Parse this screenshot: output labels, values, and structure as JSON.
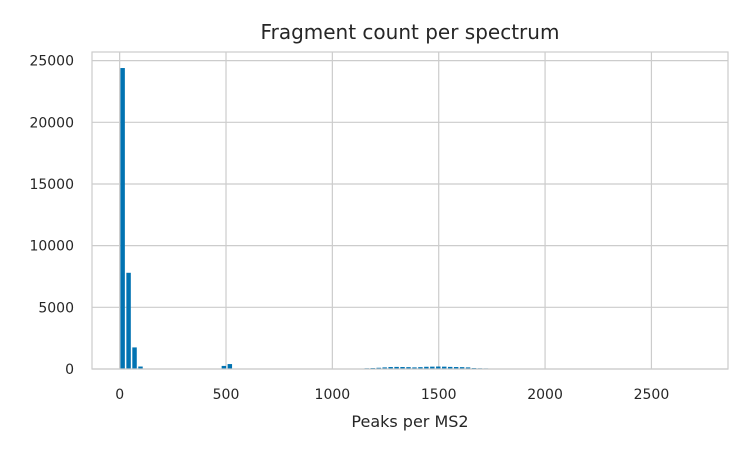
{
  "chart_data": {
    "type": "bar",
    "title": "Fragment count per spectrum",
    "xlabel": "Peaks per MS2",
    "ylabel": "",
    "xlim": [
      -130,
      2860
    ],
    "ylim": [
      0,
      25700
    ],
    "x_ticks": [
      0,
      500,
      1000,
      1500,
      2000,
      2500
    ],
    "y_ticks": [
      0,
      5000,
      10000,
      15000,
      20000,
      25000
    ],
    "grid": true,
    "bar_color": "#0173b2",
    "bin_width": 28,
    "bins": [
      {
        "x": 0,
        "count": 24400
      },
      {
        "x": 28,
        "count": 7800
      },
      {
        "x": 56,
        "count": 1750
      },
      {
        "x": 84,
        "count": 200
      },
      {
        "x": 112,
        "count": 40
      },
      {
        "x": 140,
        "count": 10
      },
      {
        "x": 168,
        "count": 5
      },
      {
        "x": 476,
        "count": 250
      },
      {
        "x": 504,
        "count": 400
      },
      {
        "x": 532,
        "count": 15
      },
      {
        "x": 1120,
        "count": 30
      },
      {
        "x": 1148,
        "count": 60
      },
      {
        "x": 1176,
        "count": 80
      },
      {
        "x": 1204,
        "count": 100
      },
      {
        "x": 1232,
        "count": 130
      },
      {
        "x": 1260,
        "count": 160
      },
      {
        "x": 1288,
        "count": 170
      },
      {
        "x": 1316,
        "count": 160
      },
      {
        "x": 1344,
        "count": 150
      },
      {
        "x": 1372,
        "count": 130
      },
      {
        "x": 1400,
        "count": 150
      },
      {
        "x": 1428,
        "count": 180
      },
      {
        "x": 1456,
        "count": 190
      },
      {
        "x": 1484,
        "count": 200
      },
      {
        "x": 1512,
        "count": 190
      },
      {
        "x": 1540,
        "count": 170
      },
      {
        "x": 1568,
        "count": 160
      },
      {
        "x": 1596,
        "count": 150
      },
      {
        "x": 1624,
        "count": 130
      },
      {
        "x": 1652,
        "count": 80
      },
      {
        "x": 1680,
        "count": 60
      },
      {
        "x": 1708,
        "count": 50
      },
      {
        "x": 1736,
        "count": 40
      },
      {
        "x": 1764,
        "count": 20
      },
      {
        "x": 1792,
        "count": 20
      }
    ]
  }
}
